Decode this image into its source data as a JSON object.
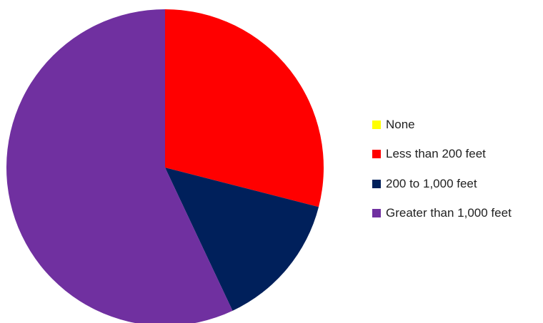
{
  "chart_data": {
    "type": "pie",
    "title": "",
    "start_angle_deg": 0,
    "direction": "clockwise",
    "slices": [
      {
        "label": "None",
        "value": 0,
        "color": "#ffff00"
      },
      {
        "label": "Less than 200 feet",
        "value": 29,
        "color": "#ff0000"
      },
      {
        "label": "200 to 1,000 feet",
        "value": 14,
        "color": "#00205b"
      },
      {
        "label": "Greater than 1,000 feet",
        "value": 57,
        "color": "#7030a0"
      }
    ],
    "legend_position": "right"
  }
}
